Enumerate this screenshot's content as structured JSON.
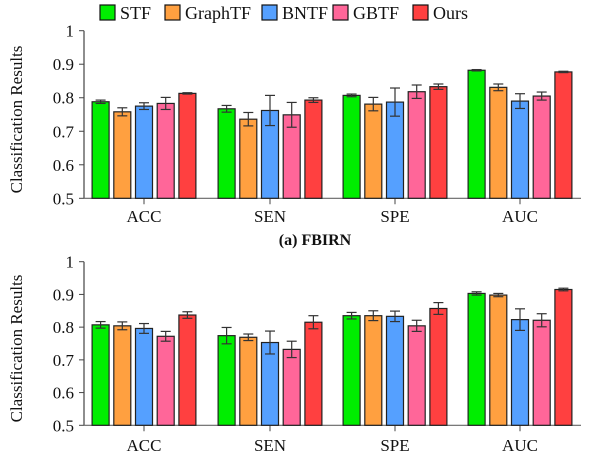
{
  "legend": [
    {
      "name": "STF",
      "color": "#00ee00"
    },
    {
      "name": "GraphTF",
      "color": "#ffa040"
    },
    {
      "name": "BNTF",
      "color": "#55a0ff"
    },
    {
      "name": "GBTF",
      "color": "#ff6699"
    },
    {
      "name": "Ours",
      "color": "#ff4040"
    }
  ],
  "chart_data": [
    {
      "type": "bar",
      "caption": "(a) FBIRN",
      "ylabel": "Classification Results",
      "xlabel": "",
      "ylim": [
        0.5,
        1
      ],
      "yticks": [
        "0.5",
        "0.6",
        "0.7",
        "0.8",
        "0.9",
        "1"
      ],
      "categories": [
        "ACC",
        "SEN",
        "SPE",
        "AUC"
      ],
      "series": [
        {
          "name": "STF",
          "values": [
            0.788,
            0.767,
            0.807,
            0.882
          ],
          "errors": [
            0.005,
            0.01,
            0.004,
            0.002
          ]
        },
        {
          "name": "GraphTF",
          "values": [
            0.758,
            0.736,
            0.781,
            0.831
          ],
          "errors": [
            0.012,
            0.02,
            0.02,
            0.01
          ]
        },
        {
          "name": "BNTF",
          "values": [
            0.775,
            0.762,
            0.787,
            0.79
          ],
          "errors": [
            0.01,
            0.045,
            0.042,
            0.022
          ]
        },
        {
          "name": "GBTF",
          "values": [
            0.783,
            0.749,
            0.818,
            0.805
          ],
          "errors": [
            0.018,
            0.037,
            0.02,
            0.012
          ]
        },
        {
          "name": "Ours",
          "values": [
            0.813,
            0.793,
            0.833,
            0.877
          ],
          "errors": [
            0.002,
            0.007,
            0.008,
            0.002
          ]
        }
      ]
    },
    {
      "type": "bar",
      "caption": "",
      "ylabel": "Classification Results",
      "xlabel": "",
      "ylim": [
        0.5,
        1
      ],
      "yticks": [
        "0.5",
        "0.6",
        "0.7",
        "0.8",
        "0.9",
        "1"
      ],
      "categories": [
        "ACC",
        "SEN",
        "SPE",
        "AUC"
      ],
      "series": [
        {
          "name": "STF",
          "values": [
            0.807,
            0.774,
            0.835,
            0.903
          ],
          "errors": [
            0.01,
            0.025,
            0.01,
            0.005
          ]
        },
        {
          "name": "GraphTF",
          "values": [
            0.804,
            0.769,
            0.835,
            0.898
          ],
          "errors": [
            0.012,
            0.01,
            0.015,
            0.005
          ]
        },
        {
          "name": "BNTF",
          "values": [
            0.796,
            0.753,
            0.833,
            0.823
          ],
          "errors": [
            0.015,
            0.035,
            0.016,
            0.033
          ]
        },
        {
          "name": "GBTF",
          "values": [
            0.772,
            0.732,
            0.804,
            0.821
          ],
          "errors": [
            0.015,
            0.025,
            0.017,
            0.02
          ]
        },
        {
          "name": "Ours",
          "values": [
            0.837,
            0.815,
            0.857,
            0.915
          ],
          "errors": [
            0.01,
            0.02,
            0.018,
            0.004
          ]
        }
      ]
    }
  ]
}
